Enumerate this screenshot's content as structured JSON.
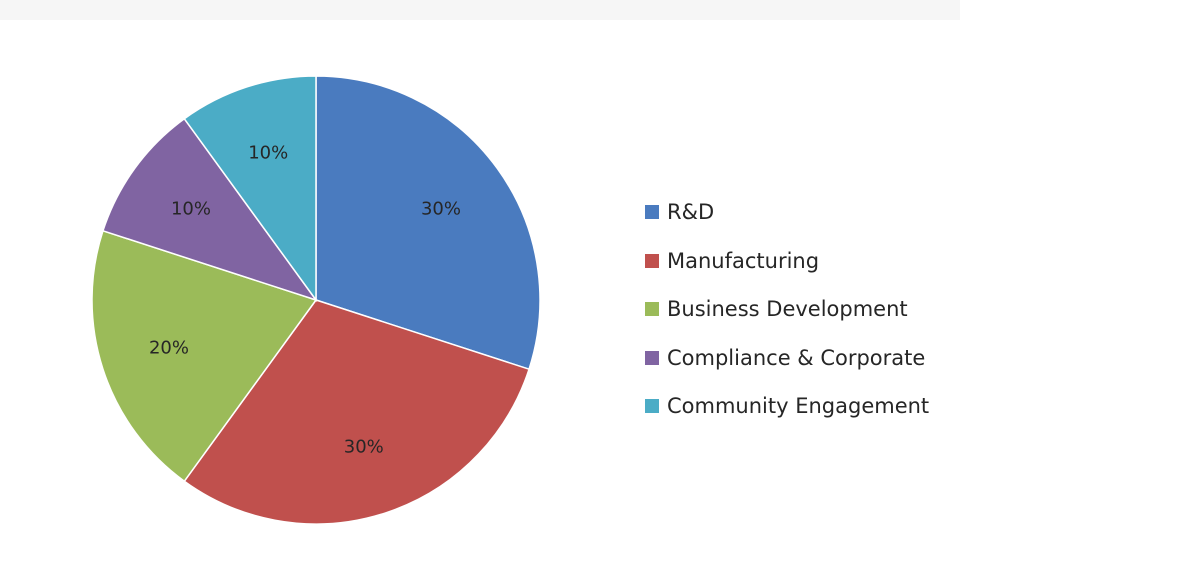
{
  "chart_data": {
    "type": "pie",
    "categories": [
      "R&D",
      "Manufacturing",
      "Business Development",
      "Compliance & Corporate",
      "Community Engagement"
    ],
    "values": [
      30,
      30,
      20,
      10,
      10
    ],
    "data_labels": [
      "30%",
      "30%",
      "20%",
      "10%",
      "10%"
    ],
    "colors": [
      "#4a7bbf",
      "#c0504d",
      "#9bbb59",
      "#8064a2",
      "#4bacc6"
    ],
    "legend_position": "right",
    "start_angle": "12 o'clock",
    "direction": "clockwise"
  },
  "legend": {
    "items": [
      {
        "label": "R&D",
        "color": "#4a7bbf"
      },
      {
        "label": "Manufacturing",
        "color": "#c0504d"
      },
      {
        "label": "Business Development",
        "color": "#9bbb59"
      },
      {
        "label": "Compliance & Corporate",
        "color": "#8064a2"
      },
      {
        "label": "Community Engagement",
        "color": "#4bacc6"
      }
    ]
  }
}
